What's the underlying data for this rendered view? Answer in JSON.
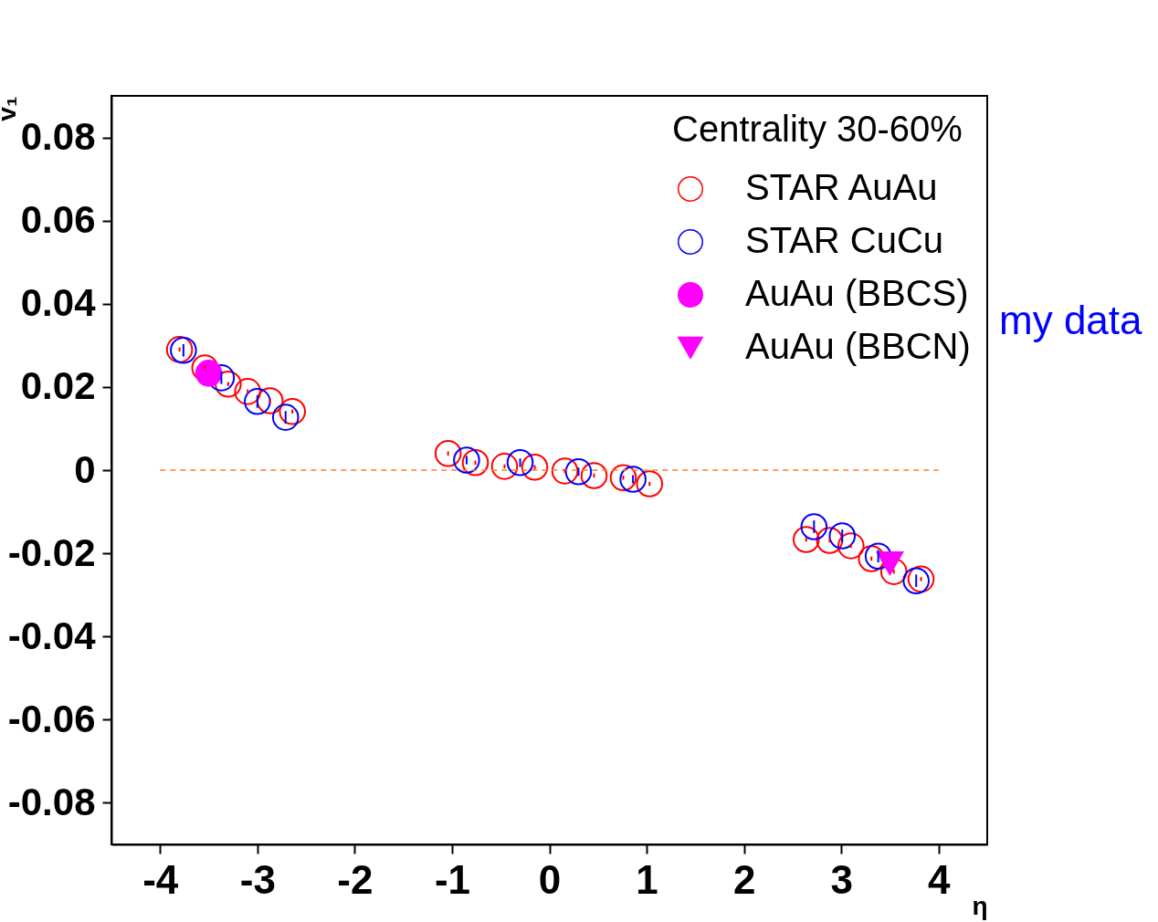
{
  "chart_data": {
    "type": "scatter",
    "xlabel": "η",
    "ylabel": "v₁",
    "legend_title": "Centrality 30-60%",
    "annotations": [
      "my data"
    ],
    "xlim": [
      -4.5,
      4.5
    ],
    "xticks": [
      -4,
      -3,
      -2,
      -1,
      0,
      1,
      2,
      3,
      4
    ],
    "ylim": [
      -0.09,
      0.09
    ],
    "yticks": [
      -0.08,
      -0.06,
      -0.04,
      -0.02,
      0,
      0.02,
      0.04,
      0.06,
      0.08
    ],
    "grid": false,
    "legend": "top right",
    "ref_lines": [
      {
        "axis": "y",
        "value": 0,
        "color": "#ff7f27",
        "line_style": "dashed"
      }
    ],
    "series": [
      {
        "name": "STAR AuAu",
        "color": "#ff0000",
        "marker": "circle",
        "x": [
          -3.8,
          -3.54,
          -3.3,
          -3.1,
          -2.87,
          -2.64,
          -1.04,
          -0.76,
          -0.46,
          -0.15,
          0.16,
          0.46,
          0.76,
          1.03,
          2.64,
          2.88,
          3.1,
          3.31,
          3.54,
          3.82
        ],
        "values": [
          0.029,
          0.0246,
          0.0207,
          0.0189,
          0.0167,
          0.0141,
          0.004,
          0.0018,
          0.0009,
          0.0007,
          -0.0002,
          -0.0013,
          -0.0018,
          -0.0033,
          -0.0167,
          -0.0169,
          -0.0182,
          -0.0213,
          -0.0244,
          -0.0262
        ],
        "errors": [
          0.0005,
          0.0005,
          0.0005,
          0.0005,
          0.0005,
          0.0005,
          0.0005,
          0.0005,
          0.0005,
          0.0005,
          0.0005,
          0.0005,
          0.0005,
          0.0005,
          0.0005,
          0.0005,
          0.0005,
          0.0005,
          0.0005,
          0.0005
        ]
      },
      {
        "name": "STAR CuCu",
        "color": "#0000ff",
        "marker": "circle",
        "x": [
          -3.76,
          -3.37,
          -3.0,
          -2.71,
          -0.85,
          -0.3,
          0.3,
          0.86,
          2.72,
          3.01,
          3.38,
          3.77
        ],
        "values": [
          0.0288,
          0.0222,
          0.0165,
          0.0127,
          0.0024,
          0.0018,
          -0.0004,
          -0.0022,
          -0.0136,
          -0.0158,
          -0.0207,
          -0.0266
        ],
        "errors": [
          0.0015,
          0.0015,
          0.0015,
          0.0015,
          0.001,
          0.001,
          0.001,
          0.001,
          0.0015,
          0.0015,
          0.0015,
          0.0015
        ]
      },
      {
        "name": "AuAu (BBCS)",
        "color": "#ff00ff",
        "marker": "circle",
        "x": [
          -3.5
        ],
        "values": [
          0.0233
        ]
      },
      {
        "name": "AuAu (BBCN)",
        "color": "#ff00ff",
        "marker": "triangle-down",
        "x": [
          3.5
        ],
        "values": [
          -0.0224
        ]
      }
    ]
  }
}
